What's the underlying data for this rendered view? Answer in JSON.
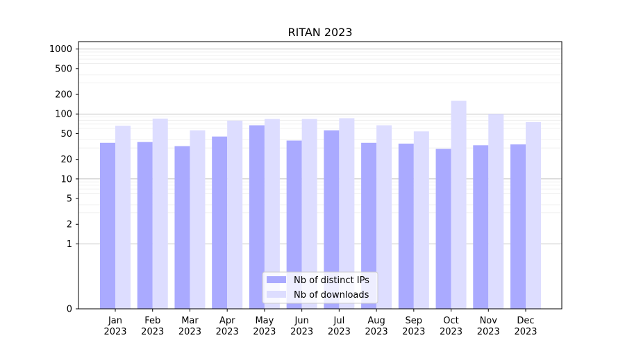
{
  "chart_data": {
    "type": "bar",
    "title": "RITAN 2023",
    "xlabel": "",
    "ylabel": "",
    "y_scale": "symlog",
    "ylim": [
      0,
      1300
    ],
    "y_ticks": [
      0,
      1,
      2,
      5,
      10,
      20,
      50,
      100,
      200,
      500,
      1000
    ],
    "grid": true,
    "legend_position": "lower center",
    "categories": [
      "Jan\n2023",
      "Feb\n2023",
      "Mar\n2023",
      "Apr\n2023",
      "May\n2023",
      "Jun\n2023",
      "Jul\n2023",
      "Aug\n2023",
      "Sep\n2023",
      "Oct\n2023",
      "Nov\n2023",
      "Dec\n2023"
    ],
    "series": [
      {
        "name": "Nb of distinct IPs",
        "color": "#aaaaff",
        "values": [
          36,
          37,
          32,
          45,
          67,
          39,
          56,
          36,
          35,
          29,
          33,
          34
        ]
      },
      {
        "name": "Nb of downloads",
        "color": "#ddddff",
        "values": [
          66,
          85,
          56,
          79,
          84,
          84,
          86,
          67,
          54,
          160,
          100,
          75
        ]
      }
    ]
  }
}
